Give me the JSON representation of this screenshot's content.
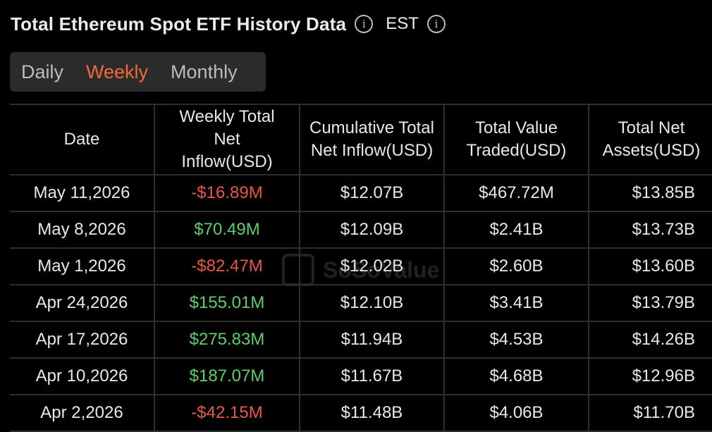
{
  "header": {
    "title": "Total Ethereum Spot ETF History Data",
    "timezone": "EST"
  },
  "tabs": [
    {
      "label": "Daily",
      "active": false
    },
    {
      "label": "Weekly",
      "active": true
    },
    {
      "label": "Monthly",
      "active": false
    }
  ],
  "watermark": "SoSoValue",
  "colors": {
    "active_tab": "#f26a3a",
    "negative": "#e85848",
    "positive": "#5fcf6b",
    "background": "#000000"
  },
  "table": {
    "columns": [
      "Date",
      "Weekly Total Net Inflow(USD)",
      "Cumulative Total Net Inflow(USD)",
      "Total Value Traded(USD)",
      "Total Net Assets(USD)"
    ],
    "rows": [
      [
        "May 11,2026",
        "-$16.89M",
        "$12.07B",
        "$467.72M",
        "$13.85B"
      ],
      [
        "May 8,2026",
        "$70.49M",
        "$12.09B",
        "$2.41B",
        "$13.73B"
      ],
      [
        "May 1,2026",
        "-$82.47M",
        "$12.02B",
        "$2.60B",
        "$13.60B"
      ],
      [
        "Apr 24,2026",
        "$155.01M",
        "$12.10B",
        "$3.41B",
        "$13.79B"
      ],
      [
        "Apr 17,2026",
        "$275.83M",
        "$11.94B",
        "$4.53B",
        "$14.26B"
      ],
      [
        "Apr 10,2026",
        "$187.07M",
        "$11.67B",
        "$4.68B",
        "$12.96B"
      ],
      [
        "Apr 2,2026",
        "-$42.15M",
        "$11.48B",
        "$4.06B",
        "$11.70B"
      ]
    ]
  }
}
